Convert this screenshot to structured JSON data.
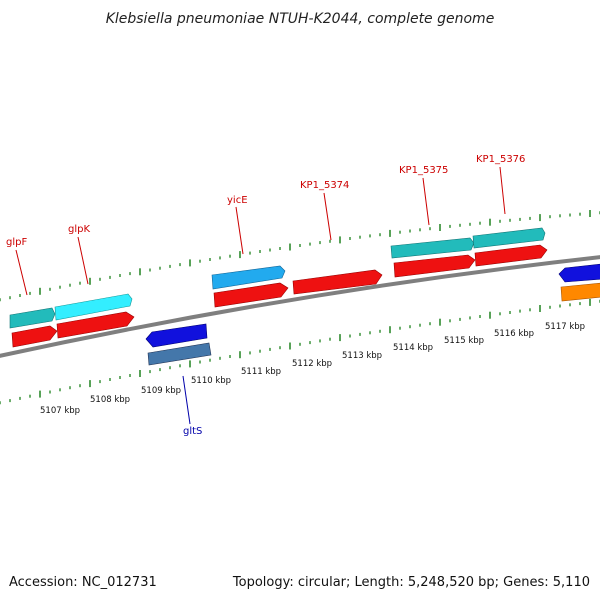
{
  "title": "Klebsiella pneumoniae NTUH-K2044, complete genome",
  "footer": {
    "accession": "Accession: NC_012731",
    "summary": "Topology: circular; Length: 5,248,520 bp; Genes: 5,110"
  },
  "colors": {
    "backbone": "#7f7f7f",
    "tick": "#2e8b2e",
    "label_forward": "#cc0000",
    "label_reverse": "#0000aa",
    "cds": "#ee1111",
    "gene_teal": "#22bbbb",
    "gene_cyan": "#22ddee",
    "gene_sky": "#22aaee",
    "gene_blue": "#1111dd",
    "gene_steel": "#4477aa",
    "gene_orange": "#ff8800"
  },
  "scale": {
    "unit": "kbp",
    "labels": [
      "5107 kbp",
      "5108 kbp",
      "5109 kbp",
      "5110 kbp",
      "5111 kbp",
      "5112 kbp",
      "5113 kbp",
      "5114 kbp",
      "5115 kbp",
      "5116 kbp",
      "5117 kbp"
    ]
  },
  "gene_labels": [
    {
      "text": "glpF",
      "strand": "forward"
    },
    {
      "text": "glpK",
      "strand": "forward"
    },
    {
      "text": "yicE",
      "strand": "forward"
    },
    {
      "text": "KP1_5374",
      "strand": "forward"
    },
    {
      "text": "KP1_5375",
      "strand": "forward"
    },
    {
      "text": "KP1_5376",
      "strand": "forward"
    },
    {
      "text": "gltS",
      "strand": "reverse"
    }
  ]
}
